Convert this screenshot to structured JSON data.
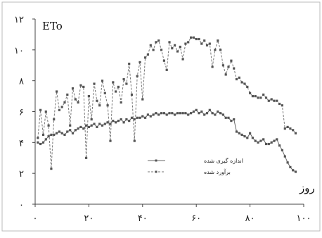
{
  "chart_data": {
    "type": "line",
    "title": "",
    "xlabel": "روز",
    "ylabel": "ETo",
    "xlim": [
      0,
      100
    ],
    "ylim": [
      0,
      12
    ],
    "x_ticks": [
      {
        "value": 0,
        "label": "۰"
      },
      {
        "value": 20,
        "label": "۲۰"
      },
      {
        "value": 40,
        "label": "۴۰"
      },
      {
        "value": 60,
        "label": "۶۰"
      },
      {
        "value": 80,
        "label": "۸۰"
      },
      {
        "value": 100,
        "label": "۱۰۰"
      }
    ],
    "y_ticks": [
      {
        "value": 0,
        "label": "۰"
      },
      {
        "value": 2,
        "label": "۲"
      },
      {
        "value": 4,
        "label": "۴"
      },
      {
        "value": 6,
        "label": "۶"
      },
      {
        "value": 8,
        "label": "۸"
      },
      {
        "value": 10,
        "label": "۱۰"
      },
      {
        "value": 12,
        "label": "۱۲"
      }
    ],
    "grid": false,
    "legend": "center-left",
    "series": [
      {
        "name": "اندازه گیری شده",
        "color": "#666666",
        "dashed": false,
        "x": [
          1,
          2,
          3,
          4,
          5,
          6,
          7,
          8,
          9,
          10,
          11,
          12,
          13,
          14,
          15,
          16,
          17,
          18,
          19,
          20,
          21,
          22,
          23,
          24,
          25,
          26,
          27,
          28,
          29,
          30,
          31,
          32,
          33,
          34,
          35,
          36,
          37,
          38,
          39,
          40,
          41,
          42,
          43,
          44,
          45,
          46,
          47,
          48,
          49,
          50,
          51,
          52,
          53,
          54,
          55,
          56,
          57,
          58,
          59,
          60,
          61,
          62,
          63,
          64,
          65,
          66,
          67,
          68,
          69,
          70,
          71,
          72,
          73,
          74,
          75,
          76,
          77,
          78,
          79,
          80,
          81,
          82,
          83,
          84,
          85,
          86,
          87,
          88,
          89,
          90,
          91,
          92,
          93,
          94,
          95,
          96,
          97
        ],
        "values": [
          4.0,
          3.9,
          4.0,
          4.2,
          4.4,
          4.5,
          4.5,
          4.6,
          4.7,
          4.6,
          4.5,
          4.7,
          4.8,
          4.6,
          4.8,
          4.9,
          5.0,
          4.9,
          5.1,
          5.0,
          5.1,
          5.2,
          5.0,
          5.2,
          5.1,
          5.2,
          5.3,
          5.2,
          5.4,
          5.3,
          5.4,
          5.5,
          5.3,
          5.5,
          5.4,
          5.6,
          5.5,
          5.6,
          5.6,
          5.7,
          5.6,
          5.8,
          5.7,
          5.8,
          5.9,
          5.8,
          5.9,
          5.9,
          5.8,
          5.9,
          5.9,
          5.8,
          5.9,
          5.9,
          5.9,
          5.9,
          5.8,
          5.9,
          6.0,
          6.1,
          5.9,
          6.0,
          5.8,
          5.9,
          6.1,
          5.9,
          5.8,
          6.0,
          5.9,
          5.8,
          5.6,
          5.6,
          5.4,
          5.5,
          4.7,
          4.6,
          4.5,
          4.4,
          4.3,
          4.6,
          4.3,
          4.1,
          4.0,
          4.1,
          4.2,
          3.9,
          3.9,
          4.0,
          4.1,
          4.2,
          3.8,
          3.5,
          3.1,
          2.7,
          2.4,
          2.2,
          2.1
        ]
      },
      {
        "name": "برآورد شده",
        "color": "#777777",
        "dashed": true,
        "x": [
          1,
          2,
          3,
          4,
          5,
          6,
          7,
          8,
          9,
          10,
          11,
          12,
          13,
          14,
          15,
          16,
          17,
          18,
          19,
          20,
          21,
          22,
          23,
          24,
          25,
          26,
          27,
          28,
          29,
          30,
          31,
          32,
          33,
          34,
          35,
          36,
          37,
          38,
          39,
          40,
          41,
          42,
          43,
          44,
          45,
          46,
          47,
          48,
          49,
          50,
          51,
          52,
          53,
          54,
          55,
          56,
          57,
          58,
          59,
          60,
          61,
          62,
          63,
          64,
          65,
          66,
          67,
          68,
          69,
          70,
          71,
          72,
          73,
          74,
          75,
          76,
          77,
          78,
          79,
          80,
          81,
          82,
          83,
          84,
          85,
          86,
          87,
          88,
          89,
          90,
          91,
          92,
          93,
          94,
          95,
          96,
          97
        ],
        "values": [
          4.3,
          6.1,
          4.5,
          6.0,
          5.1,
          2.3,
          5.5,
          7.3,
          6.1,
          6.3,
          6.6,
          7.1,
          5.1,
          7.5,
          6.8,
          6.6,
          7.7,
          7.6,
          3.0,
          7.0,
          5.5,
          7.8,
          6.7,
          6.4,
          8.0,
          7.2,
          6.4,
          4.1,
          7.9,
          7.3,
          7.6,
          6.6,
          8.1,
          7.8,
          9.1,
          7.1,
          4.1,
          8.3,
          9.2,
          6.8,
          9.5,
          9.7,
          10.3,
          10.0,
          10.5,
          10.6,
          10.0,
          9.3,
          8.7,
          10.5,
          10.1,
          10.3,
          9.9,
          10.2,
          9.4,
          10.4,
          10.5,
          10.8,
          10.8,
          10.7,
          10.7,
          10.4,
          10.6,
          10.3,
          10.4,
          8.9,
          10.0,
          10.6,
          10.0,
          9.0,
          8.4,
          8.9,
          9.3,
          8.8,
          8.1,
          8.2,
          7.9,
          7.8,
          7.6,
          7.2,
          7.0,
          7.0,
          6.9,
          6.9,
          7.1,
          6.9,
          6.7,
          6.8,
          6.7,
          6.7,
          6.5,
          6.4,
          4.9,
          5.0,
          4.9,
          4.8,
          4.6
        ]
      }
    ]
  }
}
